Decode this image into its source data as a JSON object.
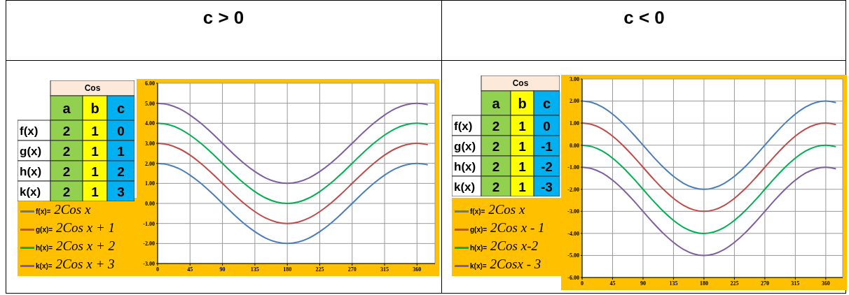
{
  "chart_data": [
    {
      "type": "heatmap",
      "title": "Cos",
      "categories": [
        "a",
        "b",
        "c"
      ],
      "y_categories": [
        "f(x)",
        "g(x)",
        "h(x)",
        "k(x)"
      ],
      "cells": [
        [
          2,
          1,
          0
        ],
        [
          2,
          1,
          1
        ],
        [
          2,
          1,
          2
        ],
        [
          2,
          1,
          3
        ]
      ],
      "colors": [
        "#92d050",
        "#ffff00",
        "#00b0f0"
      ],
      "data_labels": true
    },
    {
      "type": "line",
      "title": "c > 0",
      "x": [
        0,
        15,
        30,
        45,
        60,
        75,
        90,
        105,
        120,
        135,
        150,
        165,
        180,
        195,
        210,
        225,
        240,
        255,
        270,
        285,
        300,
        315,
        330,
        345,
        360,
        375
      ],
      "series": [
        {
          "name": "f(x)= 2Cos x",
          "color": "#4a7ebb",
          "values": [
            2,
            1.93,
            1.73,
            1.41,
            1,
            0.52,
            0,
            -0.52,
            -1,
            -1.41,
            -1.73,
            -1.93,
            -2,
            -1.93,
            -1.73,
            -1.41,
            -1,
            -0.52,
            0,
            0.52,
            1,
            1.41,
            1.73,
            1.93,
            2,
            1.93
          ]
        },
        {
          "name": "g(x)= 2Cos x + 1",
          "color": "#be4b48",
          "values": [
            3,
            2.93,
            2.73,
            2.41,
            2,
            1.52,
            1,
            0.48,
            0,
            -0.41,
            -0.73,
            -0.93,
            -1,
            -0.93,
            -0.73,
            -0.41,
            0,
            0.48,
            1,
            1.52,
            2,
            2.41,
            2.73,
            2.93,
            3,
            2.93
          ]
        },
        {
          "name": "h(x)= 2Cos x + 2",
          "color": "#00b050",
          "values": [
            4,
            3.93,
            3.73,
            3.41,
            3,
            2.52,
            2,
            1.48,
            1,
            0.59,
            0.27,
            0.07,
            0,
            0.07,
            0.27,
            0.59,
            1,
            1.48,
            2,
            2.52,
            3,
            3.41,
            3.73,
            3.93,
            4,
            3.93
          ]
        },
        {
          "name": "k(x)= 2Cos x + 3",
          "color": "#7d5fa0",
          "values": [
            5,
            4.93,
            4.73,
            4.41,
            4,
            3.52,
            3,
            2.48,
            2,
            1.59,
            1.27,
            1.07,
            1,
            1.07,
            1.27,
            1.59,
            2,
            2.48,
            3,
            3.52,
            4,
            4.41,
            4.73,
            4.93,
            5,
            4.93
          ]
        }
      ],
      "xlim": [
        0,
        385
      ],
      "xticks": [
        0,
        45,
        90,
        135,
        180,
        225,
        270,
        315,
        360
      ],
      "ylim": [
        -3,
        6
      ],
      "yticks": [
        {
          "value": -3,
          "label": "-3.00"
        },
        {
          "value": -2,
          "label": "-2.00"
        },
        {
          "value": -1,
          "label": "-1.00"
        },
        {
          "value": 0,
          "label": "0.00"
        },
        {
          "value": 1,
          "label": "1.00"
        },
        {
          "value": 2,
          "label": "2.00"
        },
        {
          "value": 3,
          "label": "3.00"
        },
        {
          "value": 4,
          "label": "4.00"
        },
        {
          "value": 5,
          "label": "5.00"
        },
        {
          "value": 6,
          "label": "6.00"
        }
      ],
      "grid": true,
      "legend": "left"
    },
    {
      "type": "heatmap",
      "title": "Cos",
      "categories": [
        "a",
        "b",
        "c"
      ],
      "y_categories": [
        "f(x)",
        "g(x)",
        "h(x)",
        "k(x)"
      ],
      "cells": [
        [
          2,
          1,
          0
        ],
        [
          2,
          1,
          -1
        ],
        [
          2,
          1,
          -2
        ],
        [
          2,
          1,
          -3
        ]
      ],
      "colors": [
        "#92d050",
        "#ffff00",
        "#00b0f0"
      ],
      "data_labels": true
    },
    {
      "type": "line",
      "title": "c < 0",
      "x": [
        0,
        15,
        30,
        45,
        60,
        75,
        90,
        105,
        120,
        135,
        150,
        165,
        180,
        195,
        210,
        225,
        240,
        255,
        270,
        285,
        300,
        315,
        330,
        345,
        360,
        375
      ],
      "series": [
        {
          "name": "f(x)= 2Cos x",
          "color": "#4a7ebb",
          "values": [
            2,
            1.93,
            1.73,
            1.41,
            1,
            0.52,
            0,
            -0.52,
            -1,
            -1.41,
            -1.73,
            -1.93,
            -2,
            -1.93,
            -1.73,
            -1.41,
            -1,
            -0.52,
            0,
            0.52,
            1,
            1.41,
            1.73,
            1.93,
            2,
            1.93
          ]
        },
        {
          "name": "g(x)= 2Cos x - 1",
          "color": "#be4b48",
          "values": [
            1,
            0.93,
            0.73,
            0.41,
            0,
            -0.48,
            -1,
            -1.52,
            -2,
            -2.41,
            -2.73,
            -2.93,
            -3,
            -2.93,
            -2.73,
            -2.41,
            -2,
            -1.52,
            -1,
            -0.48,
            0,
            0.41,
            0.73,
            0.93,
            1,
            0.93
          ]
        },
        {
          "name": "h(x)= 2Cos x-2",
          "color": "#00b050",
          "values": [
            0,
            -0.07,
            -0.27,
            -0.59,
            -1,
            -1.48,
            -2,
            -2.52,
            -3,
            -3.41,
            -3.73,
            -3.93,
            -4,
            -3.93,
            -3.73,
            -3.41,
            -3,
            -2.52,
            -2,
            -1.48,
            -1,
            -0.59,
            -0.27,
            -0.07,
            0,
            -0.07
          ]
        },
        {
          "name": "k(x)= 2Cosx - 3",
          "color": "#7d5fa0",
          "values": [
            -1,
            -1.07,
            -1.27,
            -1.59,
            -2,
            -2.48,
            -3,
            -3.52,
            -4,
            -4.41,
            -4.73,
            -4.93,
            -5,
            -4.93,
            -4.73,
            -4.41,
            -4,
            -3.52,
            -3,
            -2.48,
            -2,
            -1.59,
            -1.27,
            -1.07,
            -1,
            -1.07
          ]
        }
      ],
      "xlim": [
        0,
        385
      ],
      "xticks": [
        0,
        45,
        90,
        135,
        180,
        225,
        270,
        315,
        360
      ],
      "ylim": [
        -6,
        3
      ],
      "yticks": [
        {
          "value": -6,
          "label": "-6.00"
        },
        {
          "value": -5,
          "label": "-5.00"
        },
        {
          "value": -4,
          "label": "-4.00"
        },
        {
          "value": -3,
          "label": "-3.00"
        },
        {
          "value": -2,
          "label": "-2.00"
        },
        {
          "value": -1,
          "label": "-1.00"
        },
        {
          "value": 0,
          "label": "0.00"
        },
        {
          "value": 1,
          "label": "1.00"
        },
        {
          "value": 2,
          "label": "2.00"
        },
        {
          "value": 3,
          "label": "3.00"
        }
      ],
      "grid": true,
      "legend": "left"
    }
  ]
}
